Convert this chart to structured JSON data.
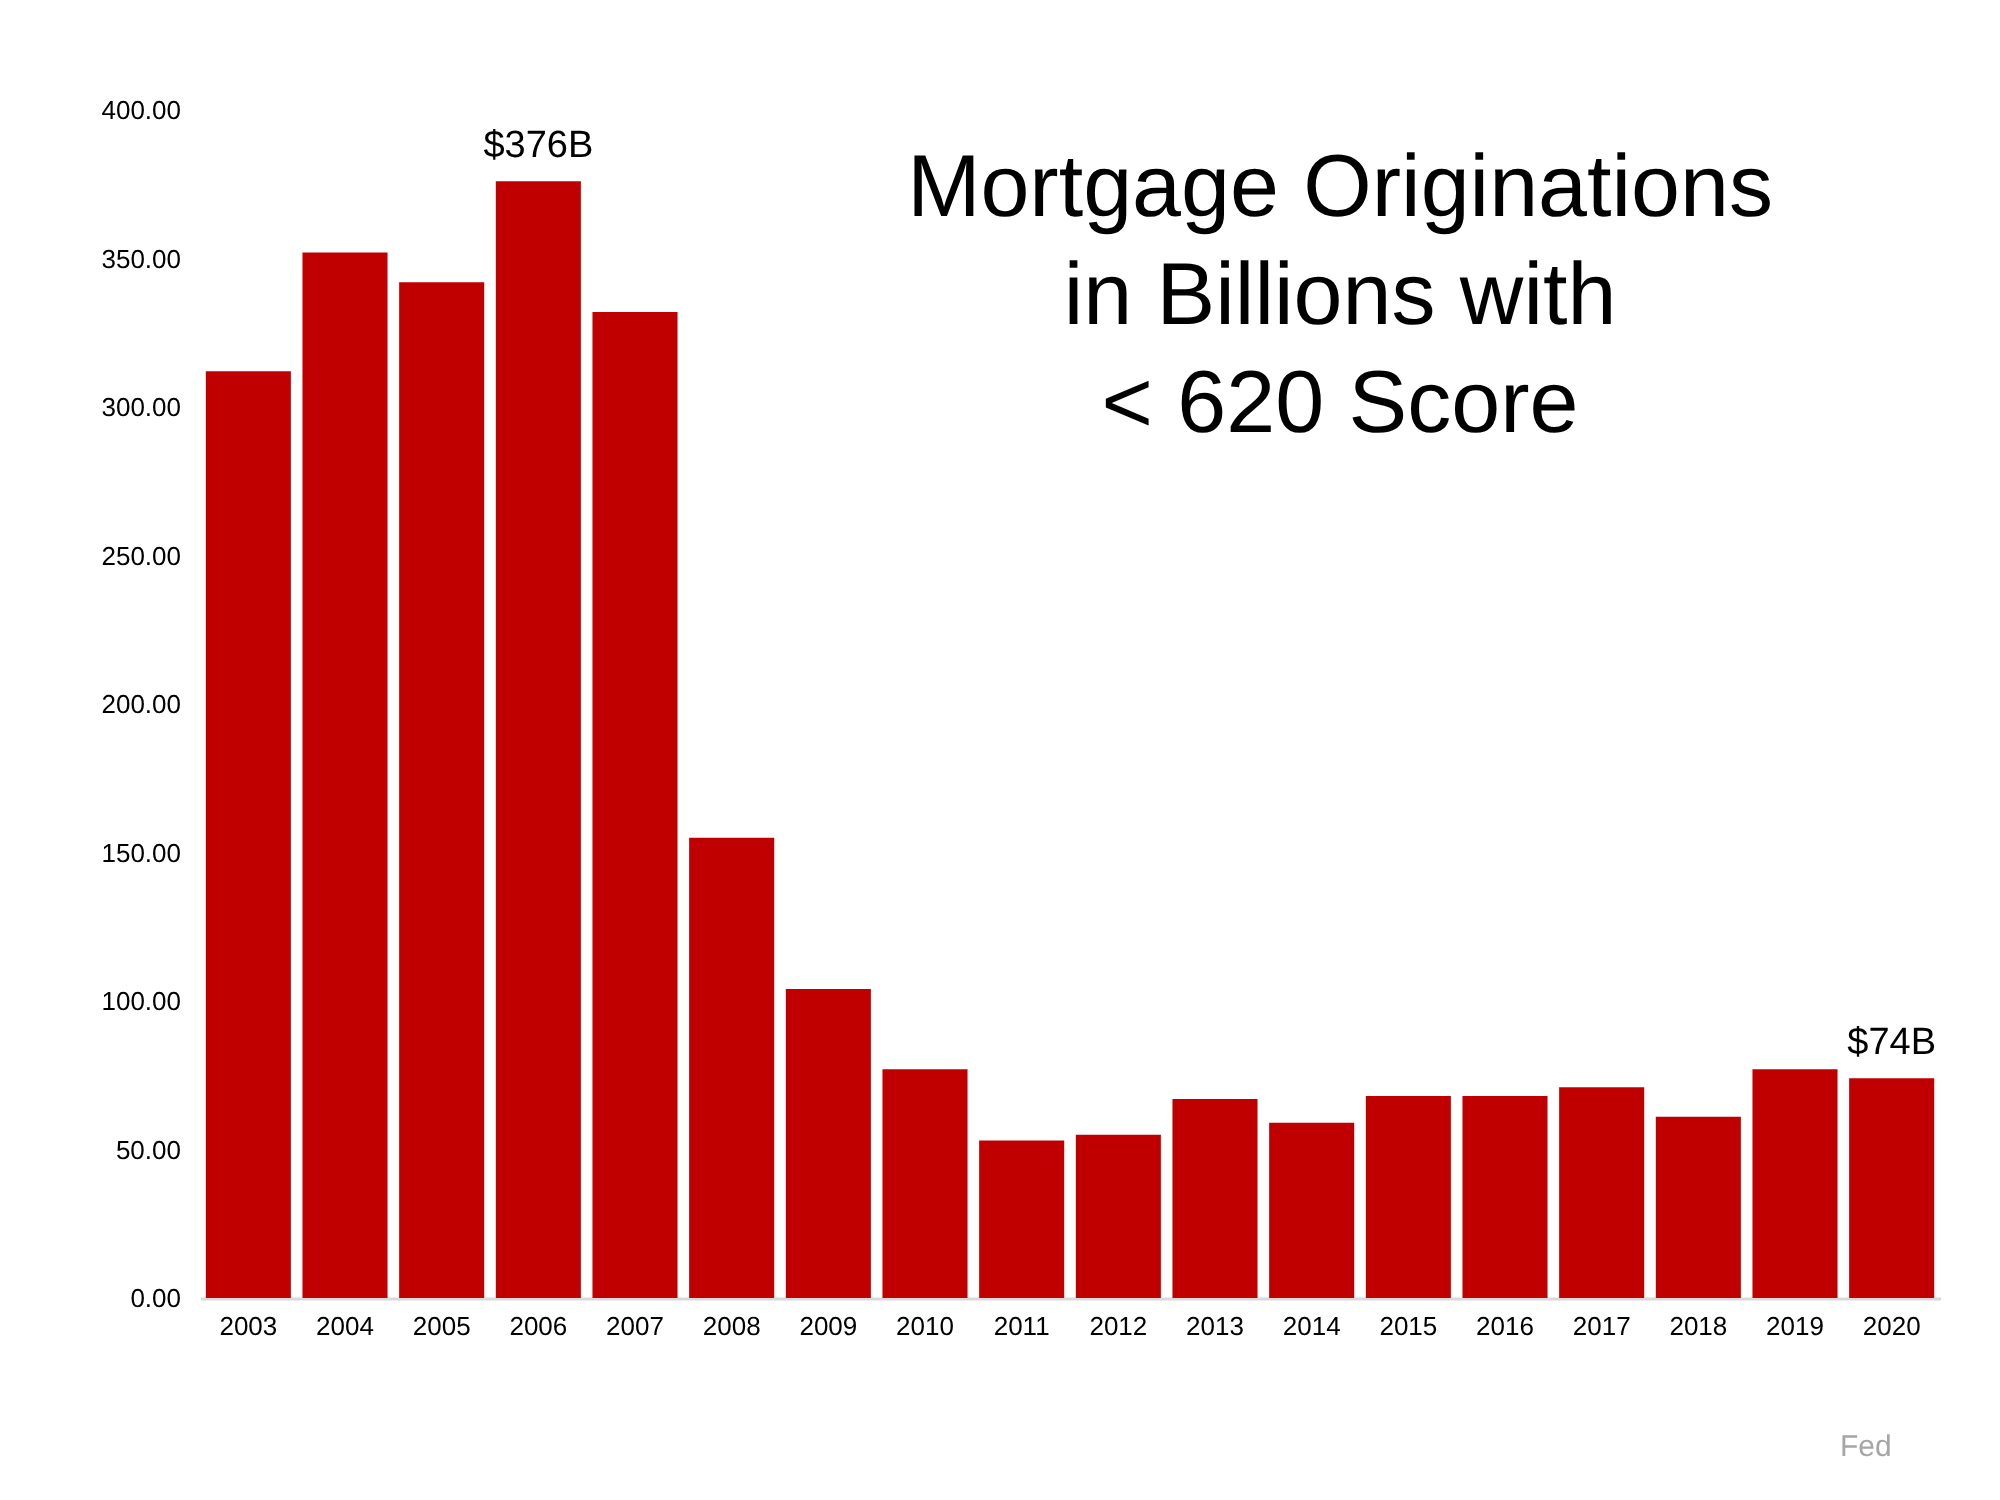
{
  "chart_data": {
    "type": "bar",
    "title": "Mortgage Originations\nin Billions with\n< 620 Score",
    "categories": [
      "2003",
      "2004",
      "2005",
      "2006",
      "2007",
      "2008",
      "2009",
      "2010",
      "2011",
      "2012",
      "2013",
      "2014",
      "2015",
      "2016",
      "2017",
      "2018",
      "2019",
      "2020"
    ],
    "values": [
      312,
      352,
      342,
      376,
      332,
      155,
      104,
      77,
      53,
      55,
      67,
      59,
      68,
      68,
      71,
      61,
      77,
      74
    ],
    "value_labels": [
      null,
      null,
      null,
      "$376B",
      null,
      null,
      null,
      null,
      null,
      null,
      null,
      null,
      null,
      null,
      null,
      null,
      null,
      "$74B"
    ],
    "color": "#c00000",
    "ylim": [
      0,
      400
    ],
    "yticks": [
      {
        "value": 0,
        "label": "0.00"
      },
      {
        "value": 50,
        "label": "50.00"
      },
      {
        "value": 100,
        "label": "100.00"
      },
      {
        "value": 150,
        "label": "150.00"
      },
      {
        "value": 200,
        "label": "200.00"
      },
      {
        "value": 250,
        "label": "250.00"
      },
      {
        "value": 300,
        "label": "300.00"
      },
      {
        "value": 350,
        "label": "350.00"
      },
      {
        "value": 400,
        "label": "400.00"
      }
    ],
    "annotations": [
      "Fed"
    ]
  }
}
